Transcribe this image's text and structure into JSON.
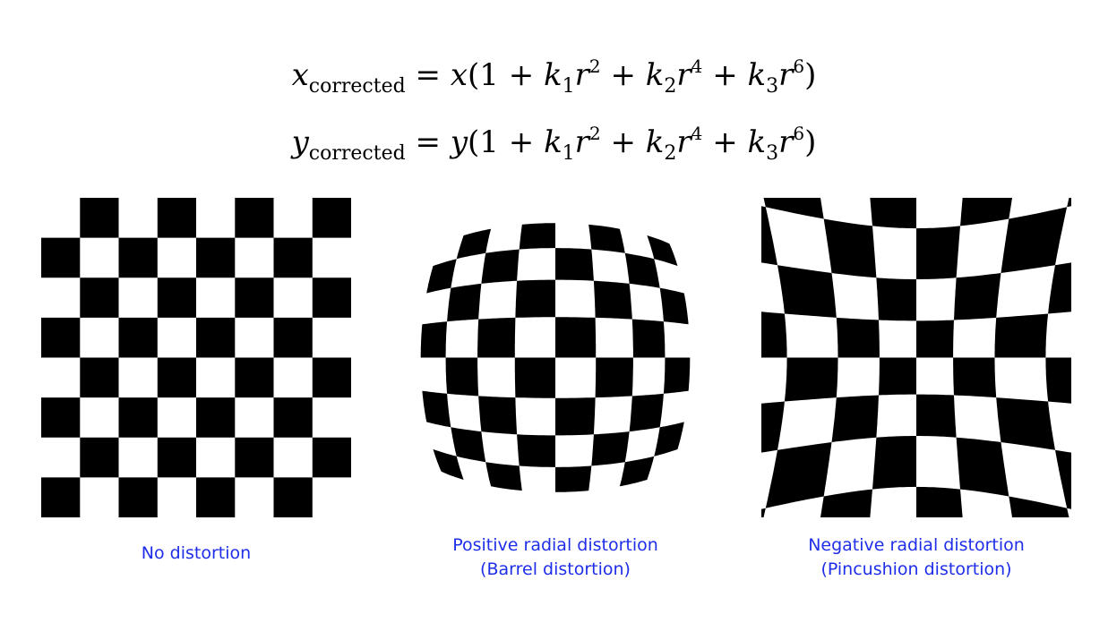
{
  "equations": {
    "line1": {
      "lhs_var": "x",
      "lhs_sub": "corrected",
      "rhs_var": "x",
      "k1": "k",
      "k1_sub": "1",
      "r1": "r",
      "p1": "2",
      "k2": "k",
      "k2_sub": "2",
      "r2": "r",
      "p2": "4",
      "k3": "k",
      "k3_sub": "3",
      "r3": "r",
      "p3": "6",
      "one": "1",
      "eq": "=",
      "plus": "+",
      "open": "(",
      "close": ")"
    },
    "line2": {
      "lhs_var": "y",
      "lhs_sub": "corrected",
      "rhs_var": "y",
      "k1": "k",
      "k1_sub": "1",
      "r1": "r",
      "p1": "2",
      "k2": "k",
      "k2_sub": "2",
      "r2": "r",
      "p2": "4",
      "k3": "k",
      "k3_sub": "3",
      "r3": "r",
      "p3": "6",
      "one": "1",
      "eq": "=",
      "plus": "+",
      "open": "(",
      "close": ")"
    }
  },
  "panels": [
    {
      "caption_line1": "No distortion",
      "caption_line2": "",
      "distortion": "none"
    },
    {
      "caption_line1": "Positive radial distortion",
      "caption_line2": "(Barrel distortion)",
      "distortion": "barrel"
    },
    {
      "caption_line1": "Negative radial distortion",
      "caption_line2": "(Pincushion distortion)",
      "distortion": "pincushion"
    }
  ],
  "colors": {
    "caption": "#1f2ee8",
    "square": "#000000",
    "background": "#ffffff"
  }
}
